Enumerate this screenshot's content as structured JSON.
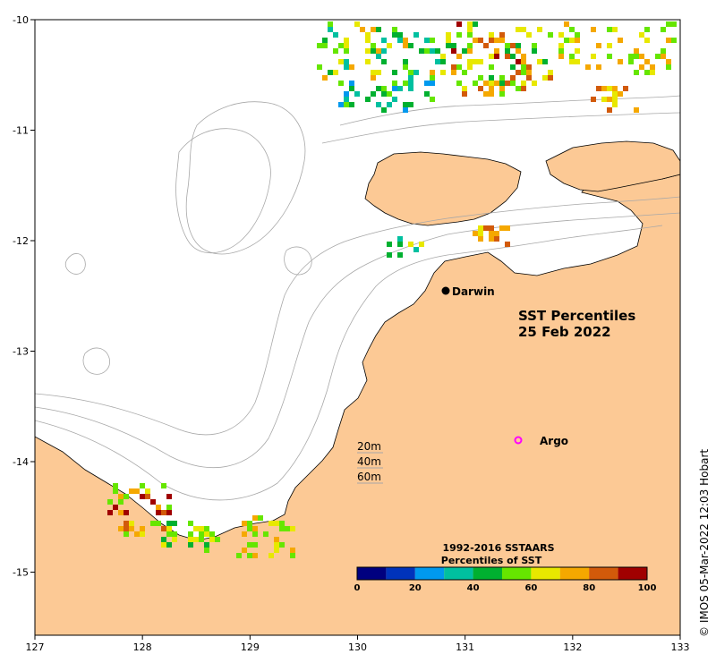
{
  "map": {
    "title_line1": "SST Percentiles",
    "title_line2": "25 Feb 2022",
    "lon_ticks": [
      "127",
      "128",
      "129",
      "130",
      "131",
      "132",
      "133"
    ],
    "lat_ticks": [
      "-10",
      "-11",
      "-12",
      "-13",
      "-14",
      "-15"
    ],
    "places": [
      {
        "name": "Darwin",
        "marker": "filled-circle"
      },
      {
        "name": "Argo",
        "marker": "open-circle",
        "color": "#ff00ff"
      }
    ],
    "depth_legend": [
      "20m",
      "40m",
      "60m"
    ],
    "colorbar": {
      "title_line1": "1992-2016 SSTAARS",
      "title_line2": "Percentiles of SST",
      "ticks": [
        "0",
        "20",
        "40",
        "60",
        "80",
        "100"
      ],
      "colors": [
        "#00007f",
        "#0033bb",
        "#0099ee",
        "#00c0a0",
        "#00b030",
        "#66e600",
        "#e8e800",
        "#f5a800",
        "#d25a0a",
        "#a00000"
      ]
    },
    "land_color": "#fcc995",
    "credit": "© IMOS 05-Mar-2022 12:03 Hobart"
  }
}
